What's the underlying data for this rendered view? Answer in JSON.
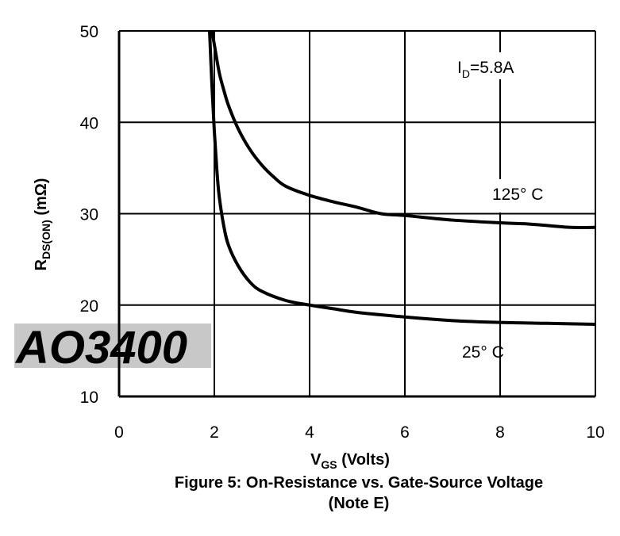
{
  "chart_data": {
    "type": "line",
    "xlabel": {
      "main": "V",
      "sub": "GS",
      "rest": " (Volts)"
    },
    "ylabel": {
      "main": "R",
      "sub": "DS(ON)",
      "rest": " (mΩ)"
    },
    "xlim": [
      0,
      10
    ],
    "ylim": [
      10,
      50
    ],
    "xticks": [
      0,
      2,
      4,
      6,
      8,
      10
    ],
    "yticks": [
      10,
      20,
      30,
      40,
      50
    ],
    "grid": true,
    "annotations": {
      "current": {
        "main": "I",
        "sub": "D",
        "rest": "=5.8A"
      },
      "label_125": "125° C",
      "label_25": "25° C"
    },
    "series": [
      {
        "name": "125° C",
        "x": [
          1.95,
          2.0,
          2.1,
          2.2,
          2.3,
          2.5,
          2.75,
          3.0,
          3.25,
          3.5,
          4.0,
          4.5,
          5.0,
          5.5,
          6.0,
          7.0,
          8.0,
          8.5,
          9.0,
          9.5,
          10.0
        ],
        "y": [
          50,
          48.5,
          45.5,
          43.5,
          41.8,
          39.3,
          37.0,
          35.3,
          34.0,
          33.0,
          32.0,
          31.3,
          30.7,
          30.0,
          29.8,
          29.3,
          29.0,
          28.9,
          28.7,
          28.5,
          28.5
        ]
      },
      {
        "name": "25° C",
        "x": [
          1.9,
          1.95,
          2.0,
          2.05,
          2.1,
          2.2,
          2.3,
          2.5,
          2.75,
          3.0,
          3.5,
          4.0,
          4.5,
          5.0,
          6.0,
          7.0,
          8.0,
          9.0,
          10.0
        ],
        "y": [
          50,
          44.0,
          39.0,
          35.0,
          32.0,
          28.6,
          26.5,
          24.3,
          22.5,
          21.5,
          20.5,
          20.0,
          19.6,
          19.2,
          18.7,
          18.3,
          18.1,
          18.0,
          17.9
        ]
      }
    ]
  },
  "watermark": "AO3400",
  "caption": {
    "line1": "Figure 5: On-Resistance vs. Gate-Source Voltage",
    "line2": "(Note E)"
  }
}
